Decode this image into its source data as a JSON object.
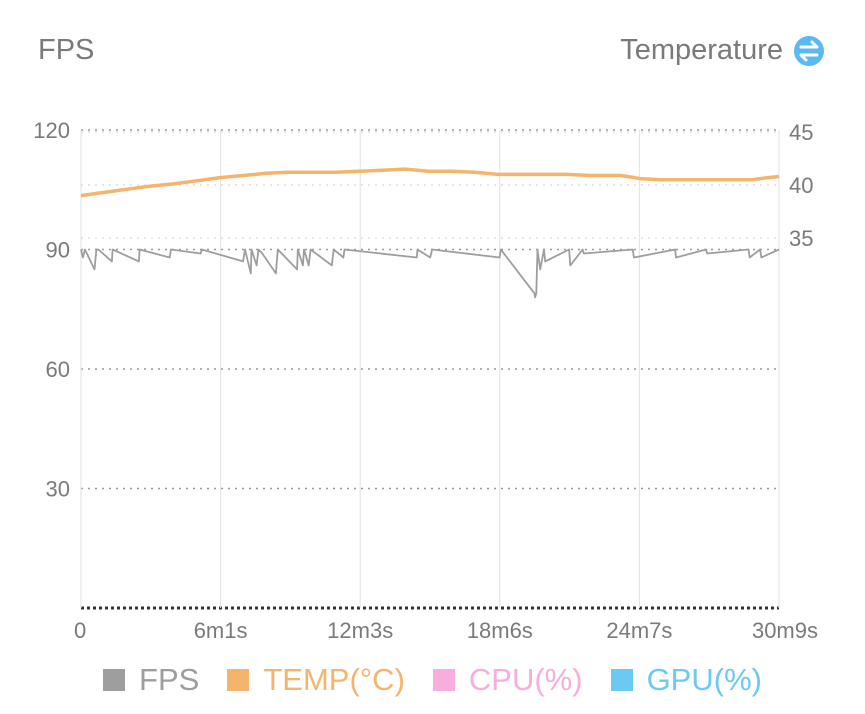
{
  "header": {
    "left_title": "FPS",
    "right_title": "Temperature",
    "swap_icon": "swap-arrows-icon"
  },
  "colors": {
    "fps": "#9e9e9e",
    "temp": "#f5b46e",
    "cpu": "#f7aede",
    "gpu": "#6bc9f2",
    "swap_icon": "#5ab9f0",
    "grid": "#9a9a9a",
    "axis_text": "#7a7a7a"
  },
  "legend": [
    {
      "key": "fps",
      "label": "FPS"
    },
    {
      "key": "temp",
      "label": "TEMP(°C)"
    },
    {
      "key": "cpu",
      "label": "CPU(%)"
    },
    {
      "key": "gpu",
      "label": "GPU(%)"
    }
  ],
  "chart_data": {
    "type": "line",
    "x_ticks": [
      "0",
      "6m1s",
      "12m3s",
      "18m6s",
      "24m7s",
      "30m9s"
    ],
    "x_range_seconds": [
      0,
      1809
    ],
    "y_left": {
      "ticks": [
        120,
        90,
        60,
        30
      ],
      "range": [
        0,
        120
      ]
    },
    "y_right": {
      "ticks": [
        45,
        40,
        35
      ],
      "range": [
        34,
        45
      ]
    },
    "grid": true,
    "legend_placement": "bottom",
    "series": [
      {
        "name": "TEMP(°C)",
        "axis": "right",
        "x_seconds": [
          0,
          60,
          120,
          180,
          240,
          300,
          361,
          420,
          480,
          540,
          600,
          660,
          723,
          780,
          840,
          900,
          960,
          1020,
          1080,
          1140,
          1200,
          1260,
          1320,
          1400,
          1450,
          1500,
          1560,
          1620,
          1680,
          1740,
          1780,
          1809
        ],
        "values": [
          39.0,
          39.3,
          39.6,
          39.9,
          40.1,
          40.4,
          40.7,
          40.9,
          41.1,
          41.2,
          41.2,
          41.2,
          41.3,
          41.4,
          41.5,
          41.3,
          41.3,
          41.2,
          41.0,
          41.0,
          41.0,
          41.0,
          40.9,
          40.9,
          40.6,
          40.5,
          40.5,
          40.5,
          40.5,
          40.5,
          40.7,
          40.8
        ]
      },
      {
        "name": "FPS",
        "axis": "left",
        "x_seconds": [
          0,
          5,
          10,
          35,
          40,
          45,
          80,
          82,
          150,
          152,
          230,
          233,
          310,
          313,
          420,
          425,
          440,
          442,
          455,
          460,
          470,
          505,
          510,
          560,
          562,
          575,
          578,
          590,
          595,
          650,
          655,
          680,
          683,
          870,
          872,
          905,
          910,
          1085,
          1088,
          1175,
          1177,
          1180,
          1183,
          1190,
          1200,
          1203,
          1265,
          1268,
          1300,
          1303,
          1430,
          1433,
          1540,
          1542,
          1620,
          1623,
          1730,
          1733,
          1760,
          1763,
          1809
        ],
        "values": [
          90,
          88,
          90,
          85,
          90,
          90,
          87,
          90,
          87,
          90,
          88,
          90,
          89,
          90,
          87,
          90,
          84,
          90,
          86,
          90,
          89,
          84,
          90,
          85,
          90,
          86,
          90,
          86,
          90,
          86,
          90,
          88,
          90,
          88,
          90,
          88,
          90,
          88,
          90,
          79,
          78,
          79,
          90,
          85,
          90,
          87,
          90,
          86,
          90,
          89,
          90,
          88,
          90,
          88,
          90,
          89,
          90,
          88,
          90,
          88,
          90
        ]
      }
    ]
  }
}
